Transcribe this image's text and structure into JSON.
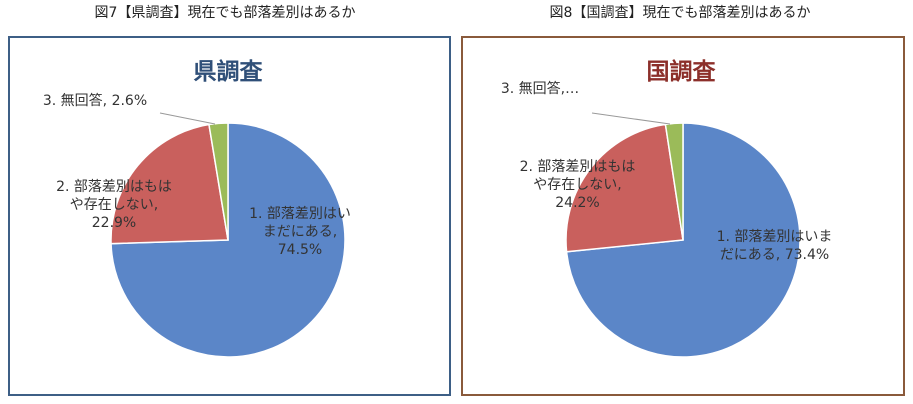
{
  "chart_data": [
    {
      "type": "pie",
      "caption": "図7【県調査】現在でも部落差別はあるか",
      "title": "県調査",
      "values": [
        74.5,
        22.9,
        2.6
      ],
      "value_labels": [
        "1. 部落差別はいまだにある, 74.5%",
        "2. 部落差別はもはや存在しない, 22.9%",
        "3. 無回答, 2.6%"
      ],
      "colors": [
        "#5b86c8",
        "#c9605d",
        "#9bbb59"
      ],
      "title_color": "#2f4f78",
      "border_color": "#3d5f86"
    },
    {
      "type": "pie",
      "caption": "図8【国調査】現在でも部落差別はあるか",
      "title": "国調査",
      "values": [
        73.4,
        24.2,
        2.4
      ],
      "value_labels": [
        "1. 部落差別はいまだにある, 73.4%",
        "2. 部落差別はもはや存在しない, 24.2%",
        "3. 無回答,…"
      ],
      "colors": [
        "#5b86c8",
        "#c9605d",
        "#9bbb59"
      ],
      "title_color": "#8c2f2a",
      "border_color": "#8a5a3b"
    }
  ]
}
